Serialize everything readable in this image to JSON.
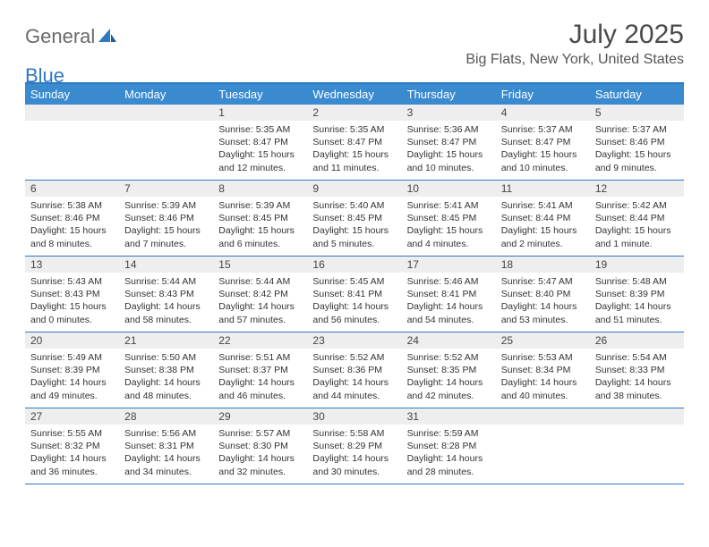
{
  "logo": {
    "general": "General",
    "blue": "Blue"
  },
  "title": "July 2025",
  "location": "Big Flats, New York, United States",
  "colors": {
    "header_bg": "#3a8ad0",
    "border": "#2f78c3",
    "daynum_bg": "#eeeeee",
    "text": "#333333",
    "title_color": "#4a4a4a"
  },
  "day_names": [
    "Sunday",
    "Monday",
    "Tuesday",
    "Wednesday",
    "Thursday",
    "Friday",
    "Saturday"
  ],
  "weeks": [
    [
      {
        "day": "",
        "sunrise": "",
        "sunset": "",
        "daylight": ""
      },
      {
        "day": "",
        "sunrise": "",
        "sunset": "",
        "daylight": ""
      },
      {
        "day": "1",
        "sunrise": "Sunrise: 5:35 AM",
        "sunset": "Sunset: 8:47 PM",
        "daylight": "Daylight: 15 hours and 12 minutes."
      },
      {
        "day": "2",
        "sunrise": "Sunrise: 5:35 AM",
        "sunset": "Sunset: 8:47 PM",
        "daylight": "Daylight: 15 hours and 11 minutes."
      },
      {
        "day": "3",
        "sunrise": "Sunrise: 5:36 AM",
        "sunset": "Sunset: 8:47 PM",
        "daylight": "Daylight: 15 hours and 10 minutes."
      },
      {
        "day": "4",
        "sunrise": "Sunrise: 5:37 AM",
        "sunset": "Sunset: 8:47 PM",
        "daylight": "Daylight: 15 hours and 10 minutes."
      },
      {
        "day": "5",
        "sunrise": "Sunrise: 5:37 AM",
        "sunset": "Sunset: 8:46 PM",
        "daylight": "Daylight: 15 hours and 9 minutes."
      }
    ],
    [
      {
        "day": "6",
        "sunrise": "Sunrise: 5:38 AM",
        "sunset": "Sunset: 8:46 PM",
        "daylight": "Daylight: 15 hours and 8 minutes."
      },
      {
        "day": "7",
        "sunrise": "Sunrise: 5:39 AM",
        "sunset": "Sunset: 8:46 PM",
        "daylight": "Daylight: 15 hours and 7 minutes."
      },
      {
        "day": "8",
        "sunrise": "Sunrise: 5:39 AM",
        "sunset": "Sunset: 8:45 PM",
        "daylight": "Daylight: 15 hours and 6 minutes."
      },
      {
        "day": "9",
        "sunrise": "Sunrise: 5:40 AM",
        "sunset": "Sunset: 8:45 PM",
        "daylight": "Daylight: 15 hours and 5 minutes."
      },
      {
        "day": "10",
        "sunrise": "Sunrise: 5:41 AM",
        "sunset": "Sunset: 8:45 PM",
        "daylight": "Daylight: 15 hours and 4 minutes."
      },
      {
        "day": "11",
        "sunrise": "Sunrise: 5:41 AM",
        "sunset": "Sunset: 8:44 PM",
        "daylight": "Daylight: 15 hours and 2 minutes."
      },
      {
        "day": "12",
        "sunrise": "Sunrise: 5:42 AM",
        "sunset": "Sunset: 8:44 PM",
        "daylight": "Daylight: 15 hours and 1 minute."
      }
    ],
    [
      {
        "day": "13",
        "sunrise": "Sunrise: 5:43 AM",
        "sunset": "Sunset: 8:43 PM",
        "daylight": "Daylight: 15 hours and 0 minutes."
      },
      {
        "day": "14",
        "sunrise": "Sunrise: 5:44 AM",
        "sunset": "Sunset: 8:43 PM",
        "daylight": "Daylight: 14 hours and 58 minutes."
      },
      {
        "day": "15",
        "sunrise": "Sunrise: 5:44 AM",
        "sunset": "Sunset: 8:42 PM",
        "daylight": "Daylight: 14 hours and 57 minutes."
      },
      {
        "day": "16",
        "sunrise": "Sunrise: 5:45 AM",
        "sunset": "Sunset: 8:41 PM",
        "daylight": "Daylight: 14 hours and 56 minutes."
      },
      {
        "day": "17",
        "sunrise": "Sunrise: 5:46 AM",
        "sunset": "Sunset: 8:41 PM",
        "daylight": "Daylight: 14 hours and 54 minutes."
      },
      {
        "day": "18",
        "sunrise": "Sunrise: 5:47 AM",
        "sunset": "Sunset: 8:40 PM",
        "daylight": "Daylight: 14 hours and 53 minutes."
      },
      {
        "day": "19",
        "sunrise": "Sunrise: 5:48 AM",
        "sunset": "Sunset: 8:39 PM",
        "daylight": "Daylight: 14 hours and 51 minutes."
      }
    ],
    [
      {
        "day": "20",
        "sunrise": "Sunrise: 5:49 AM",
        "sunset": "Sunset: 8:39 PM",
        "daylight": "Daylight: 14 hours and 49 minutes."
      },
      {
        "day": "21",
        "sunrise": "Sunrise: 5:50 AM",
        "sunset": "Sunset: 8:38 PM",
        "daylight": "Daylight: 14 hours and 48 minutes."
      },
      {
        "day": "22",
        "sunrise": "Sunrise: 5:51 AM",
        "sunset": "Sunset: 8:37 PM",
        "daylight": "Daylight: 14 hours and 46 minutes."
      },
      {
        "day": "23",
        "sunrise": "Sunrise: 5:52 AM",
        "sunset": "Sunset: 8:36 PM",
        "daylight": "Daylight: 14 hours and 44 minutes."
      },
      {
        "day": "24",
        "sunrise": "Sunrise: 5:52 AM",
        "sunset": "Sunset: 8:35 PM",
        "daylight": "Daylight: 14 hours and 42 minutes."
      },
      {
        "day": "25",
        "sunrise": "Sunrise: 5:53 AM",
        "sunset": "Sunset: 8:34 PM",
        "daylight": "Daylight: 14 hours and 40 minutes."
      },
      {
        "day": "26",
        "sunrise": "Sunrise: 5:54 AM",
        "sunset": "Sunset: 8:33 PM",
        "daylight": "Daylight: 14 hours and 38 minutes."
      }
    ],
    [
      {
        "day": "27",
        "sunrise": "Sunrise: 5:55 AM",
        "sunset": "Sunset: 8:32 PM",
        "daylight": "Daylight: 14 hours and 36 minutes."
      },
      {
        "day": "28",
        "sunrise": "Sunrise: 5:56 AM",
        "sunset": "Sunset: 8:31 PM",
        "daylight": "Daylight: 14 hours and 34 minutes."
      },
      {
        "day": "29",
        "sunrise": "Sunrise: 5:57 AM",
        "sunset": "Sunset: 8:30 PM",
        "daylight": "Daylight: 14 hours and 32 minutes."
      },
      {
        "day": "30",
        "sunrise": "Sunrise: 5:58 AM",
        "sunset": "Sunset: 8:29 PM",
        "daylight": "Daylight: 14 hours and 30 minutes."
      },
      {
        "day": "31",
        "sunrise": "Sunrise: 5:59 AM",
        "sunset": "Sunset: 8:28 PM",
        "daylight": "Daylight: 14 hours and 28 minutes."
      },
      {
        "day": "",
        "sunrise": "",
        "sunset": "",
        "daylight": ""
      },
      {
        "day": "",
        "sunrise": "",
        "sunset": "",
        "daylight": ""
      }
    ]
  ]
}
